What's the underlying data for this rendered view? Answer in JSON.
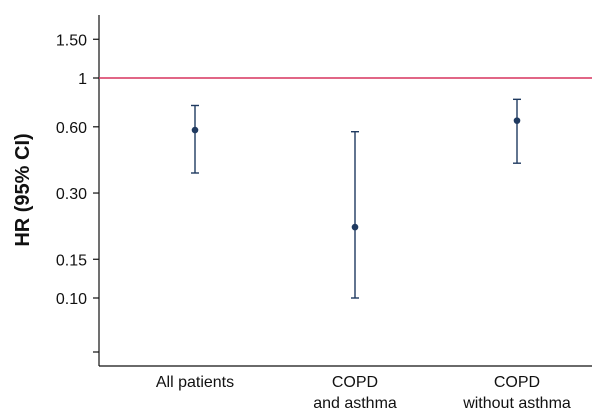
{
  "chart_data": {
    "type": "scatter",
    "subtype": "point-with-error-bars",
    "ylabel": "HR (95% CI)",
    "xlabel": "",
    "categories": [
      [
        "All patients"
      ],
      [
        "COPD",
        "and asthma"
      ],
      [
        "COPD",
        "without asthma"
      ]
    ],
    "points": [
      {
        "estimate": 0.58,
        "lower": 0.37,
        "upper": 0.75
      },
      {
        "estimate": 0.21,
        "lower": 0.1,
        "upper": 0.57
      },
      {
        "estimate": 0.64,
        "lower": 0.41,
        "upper": 0.8
      }
    ],
    "y_ticks": [
      {
        "value": 0.1,
        "label": "0.10"
      },
      {
        "value": 0.15,
        "label": "0.15"
      },
      {
        "value": 0.3,
        "label": "0.30"
      },
      {
        "value": 0.6,
        "label": "0.60"
      },
      {
        "value": 1,
        "label": "1"
      },
      {
        "value": 1.5,
        "label": "1.50"
      }
    ],
    "reference_line": {
      "value": 1,
      "color": "#d7345f"
    },
    "point_color": "#1f3a60",
    "axis_color": "#111111",
    "grid": false,
    "legend": "none"
  }
}
